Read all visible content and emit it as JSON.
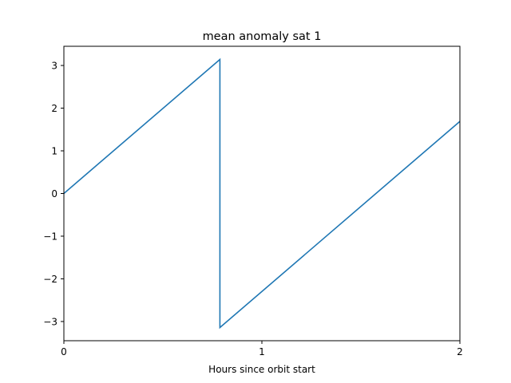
{
  "chart_data": {
    "type": "line",
    "title": "mean anomaly sat 1",
    "xlabel": "Hours since orbit start",
    "ylabel": "",
    "xlim": [
      0,
      2
    ],
    "ylim": [
      -3.45,
      3.45
    ],
    "xticks": [
      0,
      1,
      2
    ],
    "xtick_labels": [
      "0",
      "1",
      "2"
    ],
    "yticks": [
      -3,
      -2,
      -1,
      0,
      1,
      2,
      3
    ],
    "ytick_labels": [
      "−3",
      "−2",
      "−1",
      "0",
      "1",
      "2",
      "3"
    ],
    "grid": false,
    "legend": "none",
    "series": [
      {
        "color": "#1f77b4",
        "x": [
          0,
          0.788,
          0.788,
          2.0
        ],
        "y": [
          0.0,
          3.14159,
          -3.14159,
          1.69
        ]
      }
    ]
  }
}
